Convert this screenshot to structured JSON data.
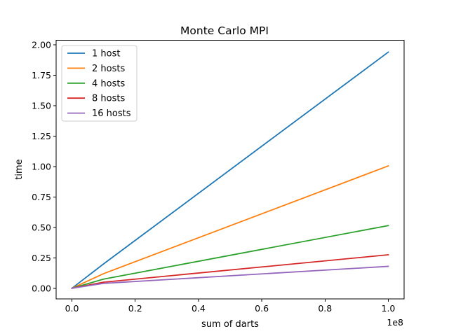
{
  "chart_data": {
    "type": "line",
    "title": "Monte Carlo MPI",
    "xlabel": "sum of darts",
    "ylabel": "time",
    "x_offset_label": "1e8",
    "x": [
      0,
      10000000,
      100000000
    ],
    "xlim": [
      -5000000,
      105000000
    ],
    "ylim": [
      -0.0875,
      2.0375
    ],
    "xticks": [
      0,
      20000000,
      40000000,
      60000000,
      80000000,
      100000000
    ],
    "xtick_labels": [
      "0.0",
      "0.2",
      "0.4",
      "0.6",
      "0.8",
      "1.0"
    ],
    "yticks": [
      0,
      0.25,
      0.5,
      0.75,
      1.0,
      1.25,
      1.5,
      1.75,
      2.0
    ],
    "ytick_labels": [
      "0.00",
      "0.25",
      "0.50",
      "0.75",
      "1.00",
      "1.25",
      "1.50",
      "1.75",
      "2.00"
    ],
    "grid": false,
    "legend_position": "top-left",
    "series": [
      {
        "name": "1 host",
        "color": "#1f77b4",
        "values": [
          0.0,
          0.2,
          1.94
        ]
      },
      {
        "name": "2 hosts",
        "color": "#ff7f0e",
        "values": [
          0.0,
          0.12,
          1.005
        ]
      },
      {
        "name": "4 hosts",
        "color": "#2ca02c",
        "values": [
          0.0,
          0.075,
          0.515
        ]
      },
      {
        "name": "8 hosts",
        "color": "#d62728",
        "values": [
          0.0,
          0.05,
          0.275
        ]
      },
      {
        "name": "16 hosts",
        "color": "#9467bd",
        "values": [
          0.0,
          0.04,
          0.18
        ]
      }
    ]
  }
}
